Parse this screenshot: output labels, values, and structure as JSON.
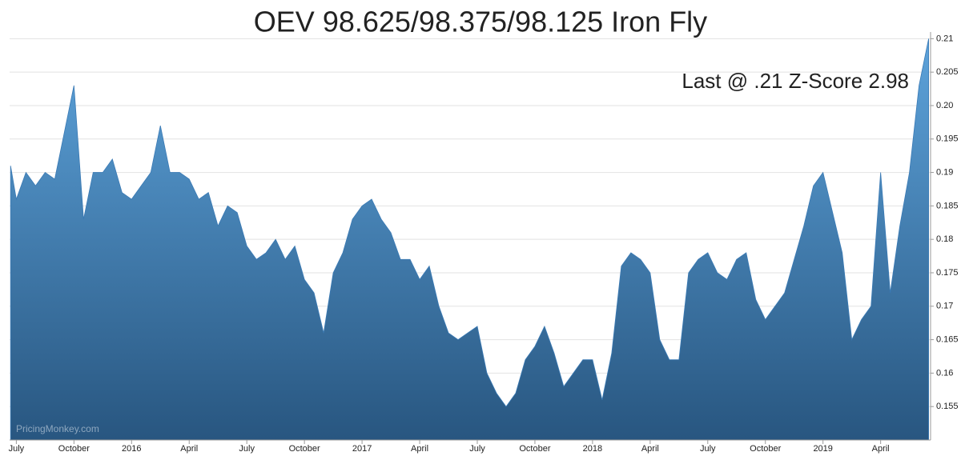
{
  "chart_data": {
    "type": "area",
    "title": "OEV 98.625/98.375/98.125 Iron Fly",
    "annotation": "Last @ .21 Z-Score 2.98",
    "watermark": "PricingMonkey.com",
    "color": "#3a7ab5",
    "gradient": [
      "#5da3db",
      "#285680"
    ],
    "grid": true,
    "x": [
      -0.3,
      0,
      0.5,
      1,
      1.5,
      2,
      2.5,
      3,
      3.5,
      4,
      4.5,
      5,
      5.5,
      6,
      6.5,
      7,
      7.5,
      8,
      8.5,
      9,
      9.5,
      10,
      10.5,
      11,
      11.5,
      12,
      12.5,
      13,
      13.5,
      14,
      14.5,
      15,
      15.5,
      16,
      16.5,
      17,
      17.5,
      18,
      18.5,
      19,
      19.5,
      20,
      20.5,
      21,
      21.5,
      22,
      22.5,
      23,
      23.5,
      24,
      24.5,
      25,
      25.5,
      26,
      26.5,
      27,
      27.5,
      28,
      28.5,
      29,
      29.5,
      30,
      30.5,
      31,
      31.5,
      32,
      32.5,
      33,
      33.5,
      34,
      34.5,
      35,
      35.5,
      36,
      36.5,
      37,
      37.5,
      38,
      38.5,
      39,
      39.5,
      40,
      40.5,
      41,
      41.5,
      42,
      42.5,
      43,
      43.5,
      44,
      44.5,
      45,
      45.5,
      46,
      46.5,
      47,
      47.5
    ],
    "values": [
      0.191,
      0.186,
      0.19,
      0.188,
      0.19,
      0.189,
      0.196,
      0.203,
      0.183,
      0.19,
      0.19,
      0.192,
      0.187,
      0.186,
      0.188,
      0.19,
      0.197,
      0.19,
      0.19,
      0.189,
      0.186,
      0.187,
      0.182,
      0.185,
      0.184,
      0.179,
      0.177,
      0.178,
      0.18,
      0.177,
      0.179,
      0.174,
      0.172,
      0.166,
      0.175,
      0.178,
      0.183,
      0.185,
      0.186,
      0.183,
      0.181,
      0.177,
      0.177,
      0.174,
      0.176,
      0.17,
      0.166,
      0.165,
      0.166,
      0.167,
      0.16,
      0.157,
      0.155,
      0.157,
      0.162,
      0.164,
      0.167,
      0.163,
      0.158,
      0.16,
      0.162,
      0.162,
      0.156,
      0.163,
      0.176,
      0.178,
      0.177,
      0.175,
      0.165,
      0.162,
      0.162,
      0.175,
      0.177,
      0.178,
      0.175,
      0.174,
      0.177,
      0.178,
      0.171,
      0.168,
      0.17,
      0.172,
      0.177,
      0.182,
      0.188,
      0.19,
      0.184,
      0.178,
      0.165,
      0.168,
      0.17,
      0.19,
      0.172,
      0.182,
      0.19,
      0.203,
      0.21
    ],
    "xlim": [
      -0.35,
      47.6
    ],
    "xticks": [
      {
        "value": 0,
        "label": "July"
      },
      {
        "value": 3,
        "label": "October"
      },
      {
        "value": 6,
        "label": "2016"
      },
      {
        "value": 9,
        "label": "April"
      },
      {
        "value": 12,
        "label": "July"
      },
      {
        "value": 15,
        "label": "October"
      },
      {
        "value": 18,
        "label": "2017"
      },
      {
        "value": 21,
        "label": "April"
      },
      {
        "value": 24,
        "label": "July"
      },
      {
        "value": 27,
        "label": "October"
      },
      {
        "value": 30,
        "label": "2018"
      },
      {
        "value": 33,
        "label": "April"
      },
      {
        "value": 36,
        "label": "July"
      },
      {
        "value": 39,
        "label": "October"
      },
      {
        "value": 42,
        "label": "2019"
      },
      {
        "value": 45,
        "label": "April"
      }
    ],
    "ylim": [
      0.15,
      0.211
    ],
    "yticks": [
      0.155,
      0.16,
      0.165,
      0.17,
      0.175,
      0.18,
      0.185,
      0.19,
      0.195,
      {
        "value": 0.2,
        "label": "0.20"
      },
      0.205,
      0.21
    ]
  }
}
